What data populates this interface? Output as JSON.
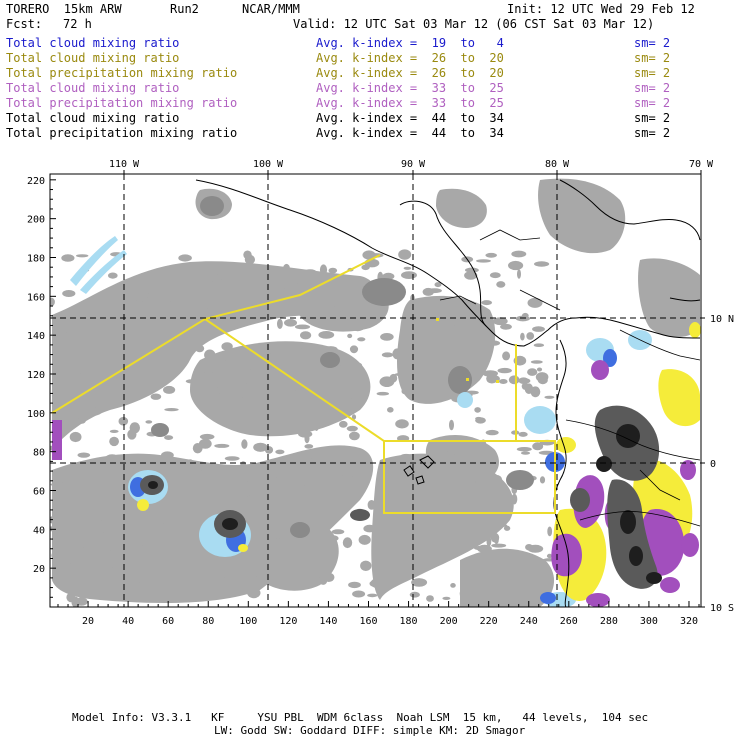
{
  "header": {
    "model": "TORERO  15km ARW",
    "run": "Run2",
    "center": "NCAR/MMM",
    "init": "Init: 12 UTC Wed 29 Feb 12",
    "fcst_label": "Fcst:",
    "fcst_value": "72 h",
    "valid": "Valid: 12 UTC Sat 03 Mar 12 (06 CST Sat 03 Mar 12)"
  },
  "legend": [
    {
      "field": "Total cloud mixing ratio",
      "index": "Avg. k-index =  19  to   4",
      "sm": "sm= 2",
      "color": "#1a1acc"
    },
    {
      "field": "Total cloud mixing ratio",
      "index": "Avg. k-index =  26  to  20",
      "sm": "sm= 2",
      "color": "#9a8a10"
    },
    {
      "field": "Total precipitation mixing ratio",
      "index": "Avg. k-index =  26  to  20",
      "sm": "sm= 2",
      "color": "#9a8a10"
    },
    {
      "field": "Total cloud mixing ratio",
      "index": "Avg. k-index =  33  to  25",
      "sm": "sm= 2",
      "color": "#b060c0"
    },
    {
      "field": "Total precipitation mixing ratio",
      "index": "Avg. k-index =  33  to  25",
      "sm": "sm= 2",
      "color": "#b060c0"
    },
    {
      "field": "Total cloud mixing ratio",
      "index": "Avg. k-index =  44  to  34",
      "sm": "sm= 2",
      "color": "#000000"
    },
    {
      "field": "Total precipitation mixing ratio",
      "index": "Avg. k-index =  44  to  34",
      "sm": "sm= 2",
      "color": "#000000"
    }
  ],
  "map": {
    "lon_labels": [
      "110 W",
      "100 W",
      "90 W",
      "80 W",
      "70 W"
    ],
    "lat_labels": [
      "10 N",
      "0",
      "10 S"
    ],
    "y_ticks": [
      "220",
      "200",
      "180",
      "160",
      "140",
      "120",
      "100",
      "80",
      "60",
      "40",
      "20"
    ],
    "x_ticks": [
      "20",
      "40",
      "60",
      "80",
      "100",
      "120",
      "140",
      "160",
      "180",
      "200",
      "220",
      "240",
      "260",
      "280",
      "300",
      "320"
    ],
    "colors": {
      "cloud_gray": "#a8a8a8",
      "cloud_dark": "#5a5a5a",
      "cloud_core": "#1e1e1e",
      "light_blue": "#a9dcf2",
      "blue": "#3f6ee0",
      "purple": "#a24fbd",
      "yellow": "#f5ec3a",
      "outline_yellow": "#ecdc2a",
      "coast": "#000000"
    }
  },
  "footer": {
    "line1": "Model Info: V3.3.1   KF     YSU PBL  WDM 6class  Noah LSM  15 km,   44 levels,  104 sec",
    "line2": "LW: Godd SW: Goddard DIFF: simple KM: 2D Smagor"
  }
}
